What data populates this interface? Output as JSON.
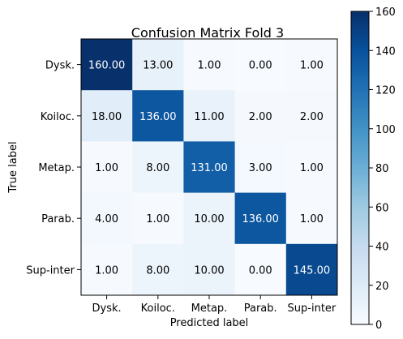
{
  "chart_data": {
    "type": "heatmap",
    "title": "Confusion Matrix Fold 3",
    "xlabel": "Predicted label",
    "ylabel": "True label",
    "x_categories": [
      "Dysk.",
      "Koiloc.",
      "Metap.",
      "Parab.",
      "Sup-inter"
    ],
    "y_categories": [
      "Dysk.",
      "Koiloc.",
      "Metap.",
      "Parab.",
      "Sup-inter"
    ],
    "values": [
      [
        160,
        13,
        1,
        0,
        1
      ],
      [
        18,
        136,
        11,
        2,
        2
      ],
      [
        1,
        8,
        131,
        3,
        1
      ],
      [
        4,
        1,
        10,
        136,
        1
      ],
      [
        1,
        8,
        10,
        0,
        145
      ]
    ],
    "value_labels": [
      [
        "160.00",
        "13.00",
        "1.00",
        "0.00",
        "1.00"
      ],
      [
        "18.00",
        "136.00",
        "11.00",
        "2.00",
        "2.00"
      ],
      [
        "1.00",
        "8.00",
        "131.00",
        "3.00",
        "1.00"
      ],
      [
        "4.00",
        "1.00",
        "10.00",
        "136.00",
        "1.00"
      ],
      [
        "1.00",
        "8.00",
        "10.00",
        "0.00",
        "145.00"
      ]
    ],
    "colormap": "Blues",
    "colormap_stops": [
      "#f7fbff",
      "#deebf7",
      "#c6dbef",
      "#9ecae1",
      "#6baed6",
      "#4292c6",
      "#2171b5",
      "#08519c",
      "#08306b"
    ],
    "colorbar": {
      "range": [
        0,
        160
      ],
      "ticks": [
        0,
        20,
        40,
        60,
        80,
        100,
        120,
        140,
        160
      ],
      "tick_labels": [
        "0",
        "20",
        "40",
        "60",
        "80",
        "100",
        "120",
        "140",
        "160"
      ]
    },
    "grid": false,
    "text_color_dark": "#000000",
    "text_color_light": "#ffffff"
  }
}
